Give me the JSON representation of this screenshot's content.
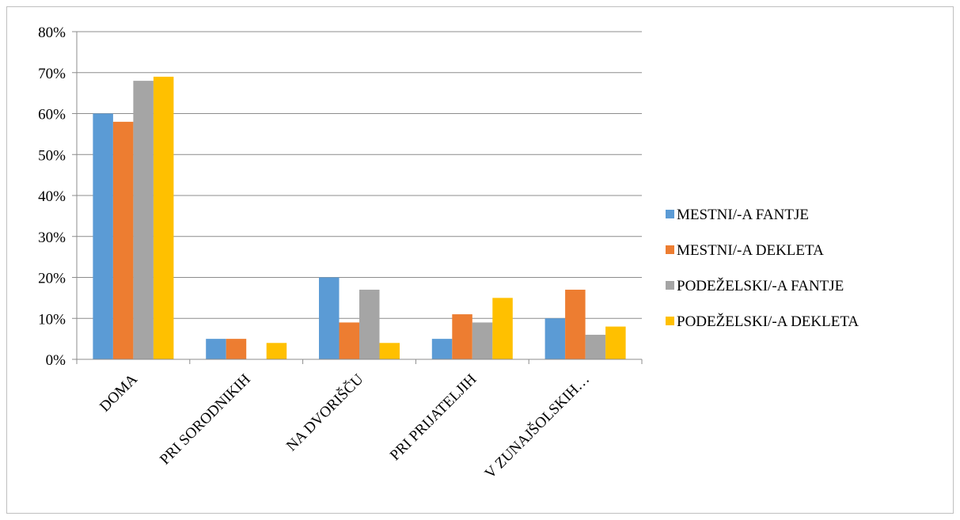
{
  "chart_data": {
    "type": "bar",
    "title": "",
    "xlabel": "",
    "ylabel": "",
    "categories": [
      "DOMA",
      "PRI SORODNIKIH",
      "NA DVORIŠČU",
      "PRI PRIJATELJIH",
      "V ZUNAJŠOLSKIH…"
    ],
    "series": [
      {
        "name": "MESTNI/-A FANTJE",
        "color": "#5B9BD5",
        "values": [
          60,
          5,
          20,
          5,
          10
        ]
      },
      {
        "name": "MESTNI/-A DEKLETA",
        "color": "#ED7D31",
        "values": [
          58,
          5,
          9,
          11,
          17
        ]
      },
      {
        "name": "PODEŽELSKI/-A FANTJE",
        "color": "#A5A5A5",
        "values": [
          68,
          0,
          17,
          9,
          6
        ]
      },
      {
        "name": "PODEŽELSKI/-A DEKLETA",
        "color": "#FFC000",
        "values": [
          69,
          4,
          4,
          15,
          8
        ]
      }
    ],
    "ylim": [
      0,
      80
    ],
    "yticks": [
      0,
      10,
      20,
      30,
      40,
      50,
      60,
      70,
      80
    ],
    "ytick_labels": [
      "0%",
      "10%",
      "20%",
      "30%",
      "40%",
      "50%",
      "60%",
      "70%",
      "80%"
    ],
    "grid": true,
    "legend": "right",
    "gridline_color": "#8c8c8c",
    "axis_color": "#8c8c8c"
  }
}
